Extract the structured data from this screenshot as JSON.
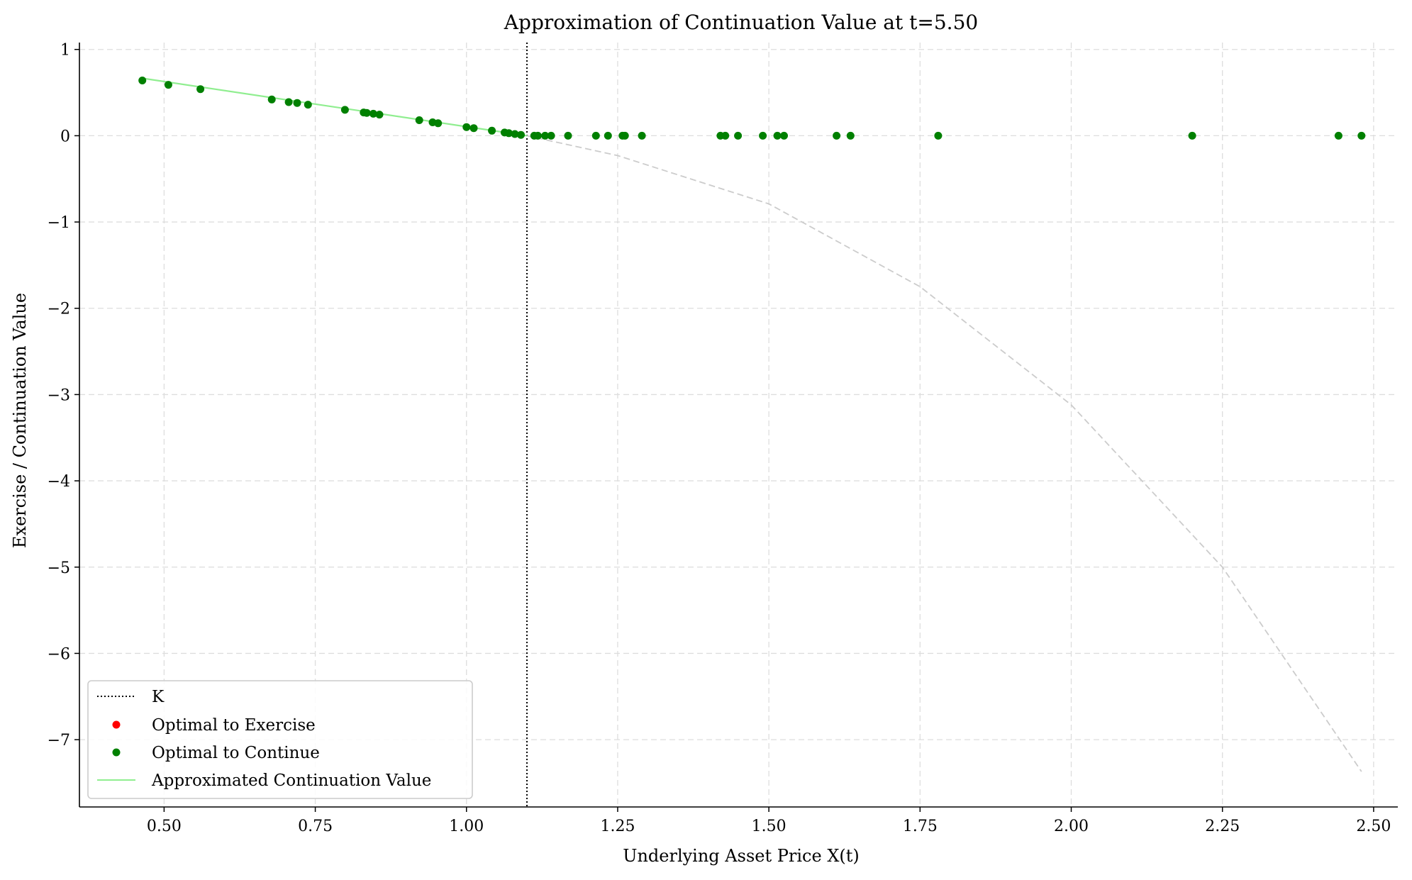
{
  "chart_data": {
    "type": "scatter",
    "title": "Approximation of Continuation Value at t=5.50",
    "xlabel": "Underlying Asset Price X(t)",
    "ylabel": "Exercise / Continuation Value",
    "xlim": [
      0.36,
      2.54
    ],
    "ylim": [
      -7.78,
      1.08
    ],
    "grid": true,
    "xticks": [
      0.5,
      0.75,
      1.0,
      1.25,
      1.5,
      1.75,
      2.0,
      2.25,
      2.5
    ],
    "xtick_labels": [
      "0.50",
      "0.75",
      "1.00",
      "1.25",
      "1.50",
      "1.75",
      "2.00",
      "2.25",
      "2.50"
    ],
    "yticks": [
      1,
      0,
      -1,
      -2,
      -3,
      -4,
      -5,
      -6,
      -7
    ],
    "ytick_labels": [
      "1",
      "0",
      "−1",
      "−2",
      "−3",
      "−4",
      "−5",
      "−6",
      "−7"
    ],
    "strike_K": 1.1,
    "legend": {
      "position": "lower-left",
      "entries": [
        {
          "label": "K",
          "kind": "dotted-line",
          "color": "#000000"
        },
        {
          "label": "Optimal to Exercise",
          "kind": "marker",
          "color": "#ff0000"
        },
        {
          "label": "Optimal to Continue",
          "kind": "marker",
          "color": "#008000"
        },
        {
          "label": "Approximated Continuation Value",
          "kind": "line",
          "color": "#90ee90"
        }
      ]
    },
    "series": [
      {
        "name": "Optimal to Exercise",
        "color": "#ff0000",
        "points": []
      },
      {
        "name": "Optimal to Continue",
        "color": "#008000",
        "points": [
          [
            0.464,
            0.64
          ],
          [
            0.507,
            0.59
          ],
          [
            0.56,
            0.54
          ],
          [
            0.678,
            0.42
          ],
          [
            0.706,
            0.39
          ],
          [
            0.72,
            0.38
          ],
          [
            0.738,
            0.36
          ],
          [
            0.799,
            0.3
          ],
          [
            0.83,
            0.27
          ],
          [
            0.835,
            0.265
          ],
          [
            0.846,
            0.255
          ],
          [
            0.856,
            0.245
          ],
          [
            0.922,
            0.18
          ],
          [
            0.944,
            0.155
          ],
          [
            0.953,
            0.145
          ],
          [
            1.0,
            0.1
          ],
          [
            1.012,
            0.088
          ],
          [
            1.042,
            0.058
          ],
          [
            1.063,
            0.037
          ],
          [
            1.07,
            0.03
          ],
          [
            1.08,
            0.02
          ],
          [
            1.09,
            0.01
          ],
          [
            1.112,
            0.0
          ],
          [
            1.118,
            0.0
          ],
          [
            1.13,
            0.0
          ],
          [
            1.14,
            0.0
          ],
          [
            1.168,
            0.0
          ],
          [
            1.214,
            0.0
          ],
          [
            1.234,
            0.0
          ],
          [
            1.258,
            0.0
          ],
          [
            1.262,
            0.0
          ],
          [
            1.29,
            0.0
          ],
          [
            1.42,
            0.0
          ],
          [
            1.428,
            0.0
          ],
          [
            1.449,
            0.0
          ],
          [
            1.49,
            0.0
          ],
          [
            1.514,
            0.0
          ],
          [
            1.525,
            0.0
          ],
          [
            1.612,
            0.0
          ],
          [
            1.635,
            0.0
          ],
          [
            1.78,
            0.0
          ],
          [
            2.2,
            0.0
          ],
          [
            2.442,
            0.0
          ],
          [
            2.48,
            0.0
          ]
        ]
      },
      {
        "name": "Approximated Continuation Value",
        "color": "#90ee90",
        "x": [
          0.464,
          1.1
        ],
        "y": [
          0.666,
          0.0
        ]
      },
      {
        "name": "continuation-curve-extended",
        "color": "#cccccc",
        "x": [
          1.1,
          1.25,
          1.5,
          1.75,
          2.0,
          2.25,
          2.48
        ],
        "y": [
          0.0,
          -0.23,
          -0.79,
          -1.75,
          -3.12,
          -5.0,
          -7.37
        ]
      }
    ]
  }
}
